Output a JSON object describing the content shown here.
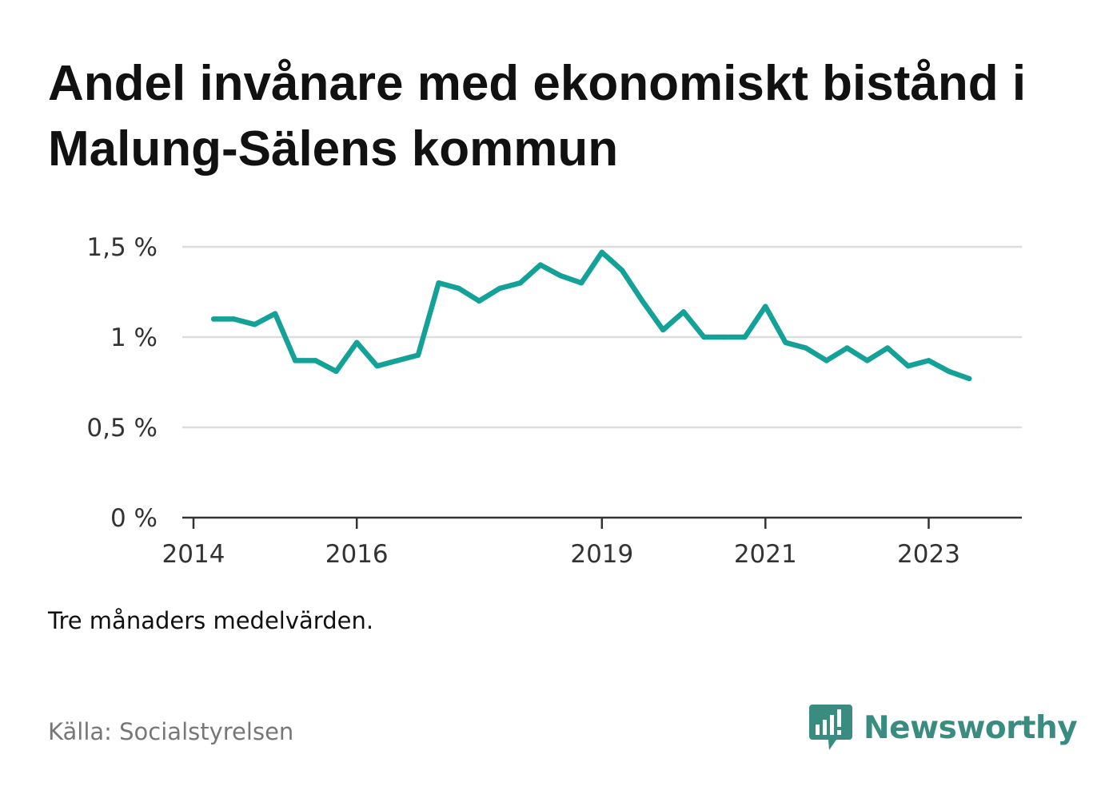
{
  "title": "Andel invånare med ekonomiskt bistånd i Malung-Sälens kommun",
  "note": "Tre månaders medelvärden.",
  "source": "Källa: Socialstyrelsen",
  "logo": {
    "text": "Newsworthy",
    "icon": "newsworthy-bar-chart-icon",
    "color": "#3b8c80"
  },
  "colors": {
    "line": "#14a197",
    "grid": "#dddddd",
    "axis": "#333333"
  },
  "chart_data": {
    "type": "line",
    "title": "Andel invånare med ekonomiskt bistånd i Malung-Sälens kommun",
    "xlabel": "",
    "ylabel": "",
    "ylim": [
      0,
      1.5
    ],
    "grid": true,
    "yticks": [
      {
        "value": 0,
        "label": "0 %"
      },
      {
        "value": 0.5,
        "label": "0,5 %"
      },
      {
        "value": 1,
        "label": "1 %"
      },
      {
        "value": 1.5,
        "label": "1,5 %"
      }
    ],
    "xlim": [
      "2014-01-01",
      "2024-01-31"
    ],
    "xticks": [
      {
        "date": "2014-01-01",
        "label": "2014"
      },
      {
        "date": "2016-01-01",
        "label": "2016"
      },
      {
        "date": "2019-01-01",
        "label": "2019"
      },
      {
        "date": "2021-01-01",
        "label": "2021"
      },
      {
        "date": "2023-01-01",
        "label": "2023"
      }
    ],
    "series": [
      {
        "values": [
          {
            "x": "2014-04-01",
            "y": 1.1
          },
          {
            "x": "2014-07-01",
            "y": 1.1
          },
          {
            "x": "2014-10-01",
            "y": 1.07
          },
          {
            "x": "2015-01-01",
            "y": 1.13
          },
          {
            "x": "2015-04-01",
            "y": 0.87
          },
          {
            "x": "2015-07-01",
            "y": 0.87
          },
          {
            "x": "2015-10-01",
            "y": 0.81
          },
          {
            "x": "2016-01-01",
            "y": 0.97
          },
          {
            "x": "2016-04-01",
            "y": 0.84
          },
          {
            "x": "2016-07-01",
            "y": 0.87
          },
          {
            "x": "2016-10-01",
            "y": 0.9
          },
          {
            "x": "2017-01-01",
            "y": 1.3
          },
          {
            "x": "2017-04-01",
            "y": 1.27
          },
          {
            "x": "2017-07-01",
            "y": 1.2
          },
          {
            "x": "2017-10-01",
            "y": 1.27
          },
          {
            "x": "2018-01-01",
            "y": 1.3
          },
          {
            "x": "2018-04-01",
            "y": 1.4
          },
          {
            "x": "2018-07-01",
            "y": 1.34
          },
          {
            "x": "2018-10-01",
            "y": 1.3
          },
          {
            "x": "2019-01-01",
            "y": 1.47
          },
          {
            "x": "2019-04-01",
            "y": 1.37
          },
          {
            "x": "2019-07-01",
            "y": 1.2
          },
          {
            "x": "2019-10-01",
            "y": 1.04
          },
          {
            "x": "2020-01-01",
            "y": 1.14
          },
          {
            "x": "2020-04-01",
            "y": 1.0
          },
          {
            "x": "2020-07-01",
            "y": 1.0
          },
          {
            "x": "2020-10-01",
            "y": 1.0
          },
          {
            "x": "2021-01-01",
            "y": 1.17
          },
          {
            "x": "2021-04-01",
            "y": 0.97
          },
          {
            "x": "2021-07-01",
            "y": 0.94
          },
          {
            "x": "2021-10-01",
            "y": 0.87
          },
          {
            "x": "2022-01-01",
            "y": 0.94
          },
          {
            "x": "2022-04-01",
            "y": 0.87
          },
          {
            "x": "2022-07-01",
            "y": 0.94
          },
          {
            "x": "2022-10-01",
            "y": 0.84
          },
          {
            "x": "2023-01-01",
            "y": 0.87
          },
          {
            "x": "2023-04-01",
            "y": 0.81
          },
          {
            "x": "2023-07-01",
            "y": 0.77
          }
        ]
      }
    ]
  }
}
